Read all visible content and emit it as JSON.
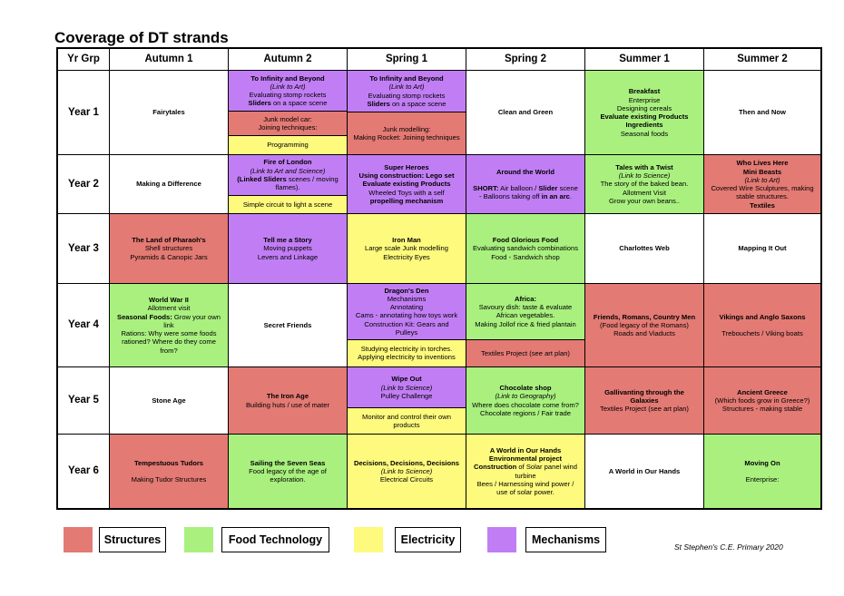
{
  "title": "Coverage of DT strands",
  "colors": {
    "white": "#ffffff",
    "structures": "#e37a74",
    "food": "#a9f07f",
    "electricity": "#fdfa7d",
    "mechanisms": "#c17ef4"
  },
  "headers": [
    "Yr Grp",
    "Autumn 1",
    "Autumn 2",
    "Spring 1",
    "Spring 2",
    "Summer 1",
    "Summer 2"
  ],
  "rows": [
    {
      "label": "Year 1",
      "cells": [
        [
          {
            "color": "white",
            "lines": [
              {
                "t": "Fairytales",
                "s": "b"
              }
            ]
          }
        ],
        [
          {
            "color": "mechanisms",
            "lines": [
              {
                "t": "To Infinity and Beyond",
                "s": "b"
              },
              {
                "t": "(Link to Art)",
                "s": "i"
              },
              {
                "t": "Evaluating stomp rockets"
              },
              {
                "runs": [
                  {
                    "t": "Sliders",
                    "s": "b"
                  },
                  {
                    "t": " on a space scene"
                  }
                ]
              }
            ]
          },
          {
            "color": "structures",
            "lines": [
              {
                "t": "Junk model car:"
              },
              {
                "t": "Joining techniques:"
              }
            ]
          },
          {
            "color": "electricity",
            "lines": [
              {
                "t": "Programming"
              }
            ]
          }
        ],
        [
          {
            "color": "mechanisms",
            "lines": [
              {
                "t": "To Infinity and Beyond",
                "s": "b"
              },
              {
                "t": "(Link to Art)",
                "s": "i"
              },
              {
                "t": "Evaluating stomp rockets"
              },
              {
                "runs": [
                  {
                    "t": "Sliders",
                    "s": "b"
                  },
                  {
                    "t": " on a space scene"
                  }
                ]
              }
            ]
          },
          {
            "color": "structures",
            "lines": [
              {
                "t": "Junk modelling:"
              },
              {
                "t": "Making Rocket: Joining techniques"
              }
            ]
          }
        ],
        [
          {
            "color": "white",
            "lines": [
              {
                "t": "Clean and Green",
                "s": "b"
              }
            ]
          }
        ],
        [
          {
            "color": "food",
            "lines": [
              {
                "t": "Breakfast",
                "s": "b"
              },
              {
                "t": "Enterprise"
              },
              {
                "t": "Designing cereals"
              },
              {
                "t": "Evaluate existing Products",
                "s": "b"
              },
              {
                "t": "Ingredients",
                "s": "b"
              },
              {
                "t": "Seasonal foods"
              }
            ]
          }
        ],
        [
          {
            "color": "white",
            "lines": [
              {
                "t": "Then and Now",
                "s": "b"
              }
            ]
          }
        ]
      ]
    },
    {
      "label": "Year 2",
      "cells": [
        [
          {
            "color": "white",
            "lines": [
              {
                "t": "Making a Difference",
                "s": "b"
              }
            ]
          }
        ],
        [
          {
            "color": "mechanisms",
            "lines": [
              {
                "t": "Fire of London",
                "s": "b"
              },
              {
                "t": "(Link to Art and Science)",
                "s": "i"
              },
              {
                "runs": [
                  {
                    "t": "(Linked Sliders",
                    "s": "b"
                  },
                  {
                    "t": " scenes / moving"
                  }
                ]
              },
              {
                "t": "flames)."
              }
            ]
          },
          {
            "color": "electricity",
            "lines": [
              {
                "t": "Simple circuit to light a scene"
              }
            ]
          }
        ],
        [
          {
            "color": "mechanisms",
            "lines": [
              {
                "t": "Super Heroes",
                "s": "b"
              },
              {
                "t": "Using construction: Lego set",
                "s": "b"
              },
              {
                "t": "Evaluate existing Products",
                "s": "b"
              },
              {
                "t": "Wheeled Toys with a self"
              },
              {
                "t": "propelling mechanism",
                "s": "b"
              }
            ]
          }
        ],
        [
          {
            "color": "mechanisms",
            "lines": [
              {
                "t": "Around the World",
                "s": "b"
              },
              {
                "t": ""
              },
              {
                "runs": [
                  {
                    "t": "SHORT:",
                    "s": "b"
                  },
                  {
                    "t": " Air balloon / "
                  },
                  {
                    "t": "Slider",
                    "s": "b"
                  },
                  {
                    "t": " scene"
                  }
                ]
              },
              {
                "runs": [
                  {
                    "t": "- Balloons taking off "
                  },
                  {
                    "t": "in an arc",
                    "s": "b"
                  },
                  {
                    "t": "."
                  }
                ]
              }
            ]
          }
        ],
        [
          {
            "color": "food",
            "lines": [
              {
                "t": "Tales with a Twist",
                "s": "b"
              },
              {
                "t": "(Link to Science)",
                "s": "i"
              },
              {
                "t": "The story of the baked bean."
              },
              {
                "t": "Allotment Visit"
              },
              {
                "t": "Grow your own beans.."
              }
            ]
          }
        ],
        [
          {
            "color": "structures",
            "lines": [
              {
                "t": "Who Lives Here",
                "s": "b"
              },
              {
                "t": "Mini Beasts",
                "s": "b"
              },
              {
                "t": "(Link to Art)",
                "s": "i"
              },
              {
                "t": "Covered Wire Sculptures, making"
              },
              {
                "t": "stable structures."
              },
              {
                "t": "Textiles",
                "s": "b"
              }
            ]
          }
        ]
      ]
    },
    {
      "label": "Year 3",
      "cells": [
        [
          {
            "color": "structures",
            "lines": [
              {
                "t": "The Land of Pharaoh's",
                "s": "b"
              },
              {
                "t": "Shell structures"
              },
              {
                "t": "Pyramids & Canopic Jars"
              }
            ]
          }
        ],
        [
          {
            "color": "mechanisms",
            "lines": [
              {
                "t": "Tell me a Story",
                "s": "b"
              },
              {
                "t": "Moving puppets"
              },
              {
                "t": "Levers and Linkage"
              }
            ]
          }
        ],
        [
          {
            "color": "electricity",
            "lines": [
              {
                "t": "Iron Man",
                "s": "b"
              },
              {
                "t": "Large scale Junk modelling"
              },
              {
                "t": "Electricity Eyes"
              }
            ]
          }
        ],
        [
          {
            "color": "food",
            "lines": [
              {
                "t": "Food Glorious Food",
                "s": "b"
              },
              {
                "t": "Evaluating sandwich combinations"
              },
              {
                "t": "Food - Sandwich shop"
              }
            ]
          }
        ],
        [
          {
            "color": "white",
            "lines": [
              {
                "t": "Charlottes Web",
                "s": "b"
              }
            ]
          }
        ],
        [
          {
            "color": "white",
            "lines": [
              {
                "t": "Mapping It Out",
                "s": "b"
              }
            ]
          }
        ]
      ]
    },
    {
      "label": "Year 4",
      "cells": [
        [
          {
            "color": "food",
            "lines": [
              {
                "t": "World War II",
                "s": "b"
              },
              {
                "t": "Allotment visit"
              },
              {
                "runs": [
                  {
                    "t": "Seasonal Foods:",
                    "s": "b"
                  },
                  {
                    "t": " Grow your own"
                  }
                ]
              },
              {
                "t": "link"
              },
              {
                "t": "Rations: Why were some foods"
              },
              {
                "t": "rationed? Where do they come"
              },
              {
                "t": "from?"
              }
            ]
          }
        ],
        [
          {
            "color": "white",
            "lines": [
              {
                "t": "Secret Friends",
                "s": "b"
              }
            ]
          }
        ],
        [
          {
            "color": "mechanisms",
            "lines": [
              {
                "t": "Dragon's Den",
                "s": "b"
              },
              {
                "t": "Mechanisms"
              },
              {
                "t": "Annotating"
              },
              {
                "t": "Cams - annotating how toys work"
              },
              {
                "t": "Construction Kit: Gears and"
              },
              {
                "t": "Pulleys"
              }
            ]
          },
          {
            "color": "electricity",
            "lines": [
              {
                "t": "Studying electricity in torches."
              },
              {
                "t": "Applying electricity to inventions"
              }
            ]
          }
        ],
        [
          {
            "color": "food",
            "lines": [
              {
                "t": "Africa:",
                "s": "b"
              },
              {
                "t": "Savoury dish: taste & evaluate"
              },
              {
                "t": "African vegetables."
              },
              {
                "t": "Making Jollof rice & fried plantain"
              }
            ]
          },
          {
            "color": "structures",
            "lines": [
              {
                "t": "Textiles Project (see art plan)"
              }
            ]
          }
        ],
        [
          {
            "color": "structures",
            "lines": [
              {
                "t": "Friends, Romans, Country Men",
                "s": "b"
              },
              {
                "t": "(Food legacy of the Romans)"
              },
              {
                "t": "Roads and Viaducts"
              }
            ]
          }
        ],
        [
          {
            "color": "structures",
            "lines": [
              {
                "t": "Vikings and Anglo Saxons",
                "s": "b"
              },
              {
                "t": ""
              },
              {
                "t": "Trebouchets / Viking boats"
              }
            ]
          }
        ]
      ]
    },
    {
      "label": "Year 5",
      "cells": [
        [
          {
            "color": "white",
            "lines": [
              {
                "t": "Stone Age",
                "s": "b"
              }
            ]
          }
        ],
        [
          {
            "color": "structures",
            "lines": [
              {
                "t": "The Iron Age",
                "s": "b"
              },
              {
                "t": "Building huts / use of mater"
              }
            ]
          }
        ],
        [
          {
            "color": "mechanisms",
            "lines": [
              {
                "t": "Wipe Out",
                "s": "b"
              },
              {
                "t": "(Link to Science)",
                "s": "i"
              },
              {
                "t": "Pulley Challenge"
              }
            ]
          },
          {
            "color": "electricity",
            "lines": [
              {
                "t": "Monitor and control their own"
              },
              {
                "t": "products"
              }
            ]
          }
        ],
        [
          {
            "color": "food",
            "lines": [
              {
                "t": "Chocolate shop",
                "s": "b"
              },
              {
                "t": "(Link to Geography)",
                "s": "i"
              },
              {
                "t": "Where does chocolate come from?"
              },
              {
                "t": "Chocolate regions / Fair trade"
              }
            ]
          }
        ],
        [
          {
            "color": "structures",
            "lines": [
              {
                "t": "Gallivanting through the",
                "s": "b"
              },
              {
                "t": "Galaxies",
                "s": "b"
              },
              {
                "t": "Textiles Project (see art plan)"
              }
            ]
          }
        ],
        [
          {
            "color": "structures",
            "lines": [
              {
                "t": "Ancient Greece",
                "s": "b"
              },
              {
                "t": "(Which foods grow in Greece?)"
              },
              {
                "t": "Structures - making stable"
              }
            ]
          }
        ]
      ]
    },
    {
      "label": "Year 6",
      "cells": [
        [
          {
            "color": "structures",
            "lines": [
              {
                "t": "Tempestuous Tudors",
                "s": "b"
              },
              {
                "t": ""
              },
              {
                "t": "Making Tudor Structures"
              }
            ]
          }
        ],
        [
          {
            "color": "food",
            "lines": [
              {
                "t": "Sailing the Seven Seas",
                "s": "b"
              },
              {
                "t": "Food legacy of the age of"
              },
              {
                "t": "exploration."
              }
            ]
          }
        ],
        [
          {
            "color": "electricity",
            "lines": [
              {
                "t": "Decisions, Decisions, Decisions",
                "s": "b"
              },
              {
                "t": "(Link to Science)",
                "s": "i"
              },
              {
                "t": "Electrical Circuits"
              }
            ]
          }
        ],
        [
          {
            "color": "electricity",
            "lines": [
              {
                "t": "A World in Our Hands",
                "s": "b"
              },
              {
                "t": "Environmental project",
                "s": "b"
              },
              {
                "runs": [
                  {
                    "t": "Construction",
                    "s": "b"
                  },
                  {
                    "t": " of Solar panel wind"
                  }
                ]
              },
              {
                "t": "turbine"
              },
              {
                "t": "Bees / Harnessing wind power /"
              },
              {
                "t": "use of solar power."
              }
            ]
          }
        ],
        [
          {
            "color": "white",
            "lines": [
              {
                "t": "A World in Our Hands",
                "s": "b"
              }
            ]
          }
        ],
        [
          {
            "color": "food",
            "lines": [
              {
                "t": "Moving On",
                "s": "b"
              },
              {
                "t": ""
              },
              {
                "t": "Enterprise:"
              }
            ]
          }
        ]
      ]
    }
  ],
  "legend": [
    {
      "label": "Structures",
      "color": "structures"
    },
    {
      "label": "Food Technology",
      "color": "food"
    },
    {
      "label": "Electricity",
      "color": "electricity"
    },
    {
      "label": "Mechanisms",
      "color": "mechanisms"
    }
  ],
  "footer": "St Stephen's C.E. Primary 2020"
}
